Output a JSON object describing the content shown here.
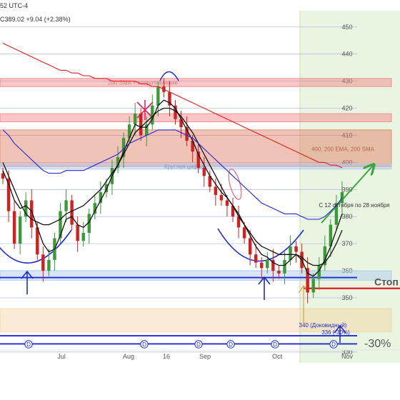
{
  "header": {
    "line1": "52 UTC-4",
    "line2": "C389.02  +9.04 (+2.38%)"
  },
  "chart_data": {
    "type": "candlestick",
    "ylim": [
      326,
      456
    ],
    "y_ticks": [
      330,
      350,
      360,
      370,
      380,
      390,
      400,
      410,
      420,
      430,
      440,
      450
    ],
    "x_ticks": [
      "Jul",
      "Aug",
      "16",
      "Sep",
      "Oct",
      "Nov"
    ],
    "event_markers": [
      "D",
      "D",
      "D",
      "D",
      "D",
      "D"
    ],
    "zones": [
      {
        "label": "200 SMA + сопротивление",
        "low": 428,
        "high": 431,
        "color": "#f08080"
      },
      {
        "label": "",
        "low": 415,
        "high": 418,
        "color": "#f08080"
      },
      {
        "label": "400, 200 EMA, 200 SMA",
        "low": 398.5,
        "high": 412,
        "color": "#e07a5f"
      },
      {
        "label": "Круглая цифра",
        "low": 397.5,
        "high": 399.5,
        "color": "#a8c8f0"
      },
      {
        "label": "",
        "low": 356.5,
        "high": 360,
        "color": "#a8c8f0"
      },
      {
        "label": "340 (Доковидный)",
        "low": 337.5,
        "high": 346,
        "color": "#f3d2a0"
      }
    ],
    "levels": [
      {
        "label": "",
        "value": 357.5,
        "color": "#1f2bd0"
      },
      {
        "label": "Стоп",
        "value": 353.5,
        "color": "#e01010"
      },
      {
        "label": "336 (-30%)",
        "value": 336,
        "color": "#1f2bd0"
      },
      {
        "label": "",
        "value": 333,
        "color": "#1f2bd0"
      }
    ],
    "annotations": {
      "forecast_window": "С 12 октября по 28 ноября",
      "drawdown": "-30%"
    },
    "close": [
      394,
      382,
      370,
      380,
      386,
      376,
      366,
      360,
      364,
      372,
      382,
      386,
      377,
      371,
      374,
      381,
      385,
      389,
      392,
      398,
      402,
      409,
      414,
      418,
      410,
      414,
      421,
      428,
      426,
      421,
      416,
      413,
      408,
      404,
      398,
      395,
      391,
      388,
      386,
      384,
      380,
      376,
      372,
      366,
      363,
      361,
      364,
      360,
      359,
      364,
      369,
      367,
      361,
      352,
      357,
      362,
      369,
      377,
      385,
      389
    ],
    "series": [
      {
        "name": "",
        "color": "#111111",
        "values": [
          400,
          395,
          390,
          385,
          381,
          379,
          378,
          377,
          377,
          378,
          379,
          381,
          382,
          383,
          384,
          386,
          388,
          390,
          393,
          396,
          399,
          403,
          407,
          411,
          413,
          415,
          417,
          419,
          420,
          420,
          419,
          417,
          414,
          411,
          407,
          403,
          399,
          395,
          391,
          387,
          384,
          380,
          377,
          374,
          371,
          369,
          368,
          367,
          366,
          366,
          366,
          366,
          365,
          363,
          362,
          362,
          363,
          366,
          370,
          375
        ]
      },
      {
        "name": "",
        "color": "#111111",
        "values": [
          397,
          392,
          386,
          383,
          384,
          382,
          376,
          370,
          367,
          368,
          373,
          379,
          380,
          377,
          376,
          378,
          382,
          386,
          390,
          395,
          399,
          404,
          409,
          414,
          413,
          413,
          416,
          421,
          423,
          422,
          420,
          416,
          412,
          408,
          403,
          399,
          395,
          392,
          389,
          387,
          384,
          381,
          377,
          373,
          369,
          366,
          365,
          363,
          362,
          362,
          364,
          366,
          364,
          359,
          358,
          360,
          364,
          369,
          375,
          381
        ]
      },
      {
        "name": "",
        "color": "#2424d8",
        "values": [
          412,
          410,
          407,
          405,
          403,
          401,
          399,
          397,
          396,
          396,
          396,
          397,
          397,
          397,
          397,
          398,
          399,
          400,
          401,
          402,
          403,
          405,
          407,
          408,
          409,
          410,
          411,
          412,
          412,
          412,
          412,
          411,
          410,
          409,
          407,
          405,
          403,
          401,
          399,
          397,
          395,
          393,
          391,
          389,
          387,
          385,
          384,
          383,
          382,
          381,
          381,
          381,
          380,
          379,
          379,
          379,
          380,
          382,
          384,
          387
        ]
      },
      {
        "name": "",
        "color": "#e02020",
        "values": [
          444,
          443,
          442,
          441,
          440,
          439,
          438,
          437,
          436,
          435,
          434,
          434,
          433,
          433,
          432,
          432,
          431,
          431,
          431,
          430,
          430,
          430,
          430,
          430,
          429,
          429,
          428,
          428,
          427,
          426,
          425,
          424,
          423,
          422,
          421,
          420,
          419,
          418,
          417,
          416,
          415,
          414,
          413,
          412,
          411,
          410,
          409,
          408,
          407,
          406,
          405,
          404,
          403,
          402,
          401,
          400,
          400,
          399,
          399,
          398
        ]
      }
    ]
  }
}
